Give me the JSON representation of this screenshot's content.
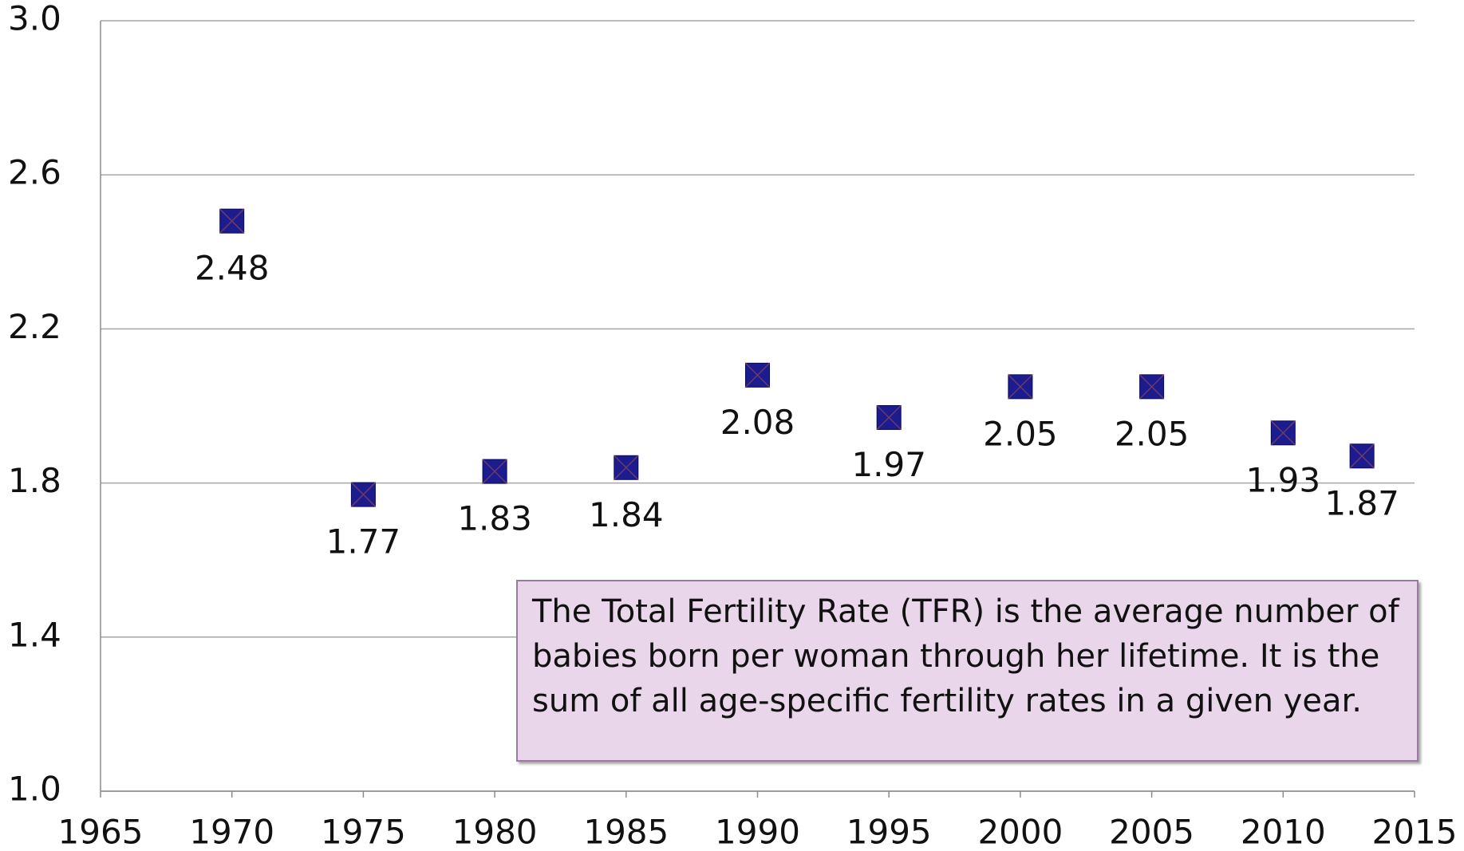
{
  "chart_data": {
    "type": "scatter",
    "x": [
      1970,
      1975,
      1980,
      1985,
      1990,
      1995,
      2000,
      2005,
      2010,
      2013
    ],
    "values": [
      2.48,
      1.77,
      1.83,
      1.84,
      2.08,
      1.97,
      2.05,
      2.05,
      1.93,
      1.87
    ],
    "color": "#1c1c8f",
    "xlim": [
      1965,
      2015
    ],
    "xticks": [
      1965,
      1970,
      1975,
      1980,
      1985,
      1990,
      1995,
      2000,
      2005,
      2010,
      2015
    ],
    "ylim": [
      1.0,
      3.0
    ],
    "yticks": [
      {
        "value": 1.0,
        "label": "1.0"
      },
      1.4,
      1.8,
      2.2,
      2.6,
      {
        "value": 3.0,
        "label": "3.0"
      }
    ],
    "grid": true,
    "annotation": "The Total Fertility Rate (TFR) is the average number of babies born per woman through her lifetime. It is the sum of all age-specific fertility rates in a given year."
  }
}
